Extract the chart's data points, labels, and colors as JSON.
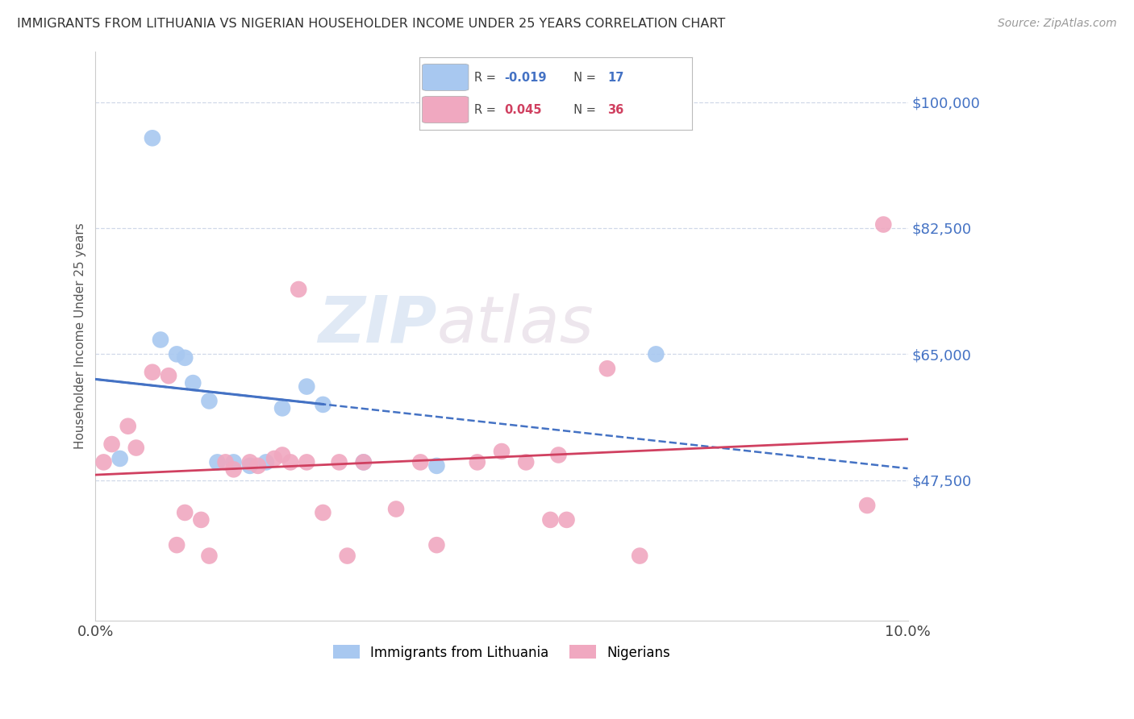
{
  "title": "IMMIGRANTS FROM LITHUANIA VS NIGERIAN HOUSEHOLDER INCOME UNDER 25 YEARS CORRELATION CHART",
  "source": "Source: ZipAtlas.com",
  "ylabel": "Householder Income Under 25 years",
  "xlim": [
    0.0,
    0.1
  ],
  "ylim": [
    28000,
    107000
  ],
  "yticks": [
    47500,
    65000,
    82500,
    100000
  ],
  "ytick_labels": [
    "$47,500",
    "$65,000",
    "$82,500",
    "$100,000"
  ],
  "xticks": [
    0.0,
    0.02,
    0.04,
    0.06,
    0.08,
    0.1
  ],
  "xtick_labels": [
    "0.0%",
    "",
    "",
    "",
    "",
    "10.0%"
  ],
  "blue_color": "#a8c8f0",
  "pink_color": "#f0a8c0",
  "blue_line_color": "#4472c4",
  "pink_line_color": "#d04060",
  "grid_color": "#d0d8e8",
  "background_color": "#ffffff",
  "watermark_zip": "ZIP",
  "watermark_atlas": "atlas",
  "lithuania_x": [
    0.003,
    0.007,
    0.008,
    0.01,
    0.011,
    0.012,
    0.014,
    0.015,
    0.017,
    0.019,
    0.021,
    0.023,
    0.026,
    0.028,
    0.033,
    0.042,
    0.069
  ],
  "lithuania_y": [
    50500,
    95000,
    67000,
    65000,
    64500,
    61000,
    58500,
    50000,
    50000,
    49500,
    50000,
    57500,
    60500,
    58000,
    50000,
    49500,
    65000
  ],
  "nigeria_x": [
    0.001,
    0.002,
    0.004,
    0.005,
    0.007,
    0.009,
    0.01,
    0.011,
    0.013,
    0.014,
    0.016,
    0.017,
    0.019,
    0.02,
    0.022,
    0.023,
    0.024,
    0.025,
    0.026,
    0.028,
    0.03,
    0.031,
    0.033,
    0.037,
    0.04,
    0.042,
    0.047,
    0.05,
    0.053,
    0.056,
    0.057,
    0.058,
    0.063,
    0.067,
    0.095,
    0.097
  ],
  "nigeria_y": [
    50000,
    52500,
    55000,
    52000,
    62500,
    62000,
    38500,
    43000,
    42000,
    37000,
    50000,
    49000,
    50000,
    49500,
    50500,
    51000,
    50000,
    74000,
    50000,
    43000,
    50000,
    37000,
    50000,
    43500,
    50000,
    38500,
    50000,
    51500,
    50000,
    42000,
    51000,
    42000,
    63000,
    37000,
    44000,
    83000
  ]
}
